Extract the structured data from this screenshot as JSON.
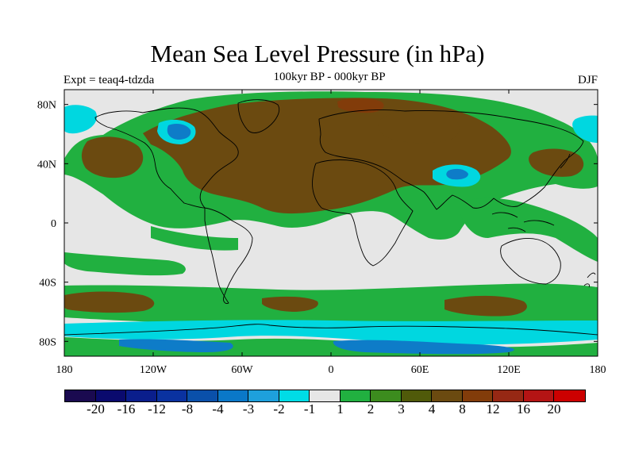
{
  "header": {
    "title": "Mean Sea Level Pressure (in hPa)",
    "subtitle": "100kyr BP - 000kyr BP",
    "experiment": "Expt = teaq4-tdzda",
    "season": "DJF"
  },
  "map": {
    "lat_axis": [
      {
        "label": "80N",
        "lat": 80
      },
      {
        "label": "40N",
        "lat": 40
      },
      {
        "label": "0",
        "lat": 0
      },
      {
        "label": "40S",
        "lat": -40
      },
      {
        "label": "80S",
        "lat": -80
      }
    ],
    "lon_axis": [
      {
        "label": "180",
        "lon": -180
      },
      {
        "label": "120W",
        "lon": -120
      },
      {
        "label": "60W",
        "lon": -60
      },
      {
        "label": "0",
        "lon": 0
      },
      {
        "label": "60E",
        "lon": 60
      },
      {
        "label": "120E",
        "lon": 120
      },
      {
        "label": "180",
        "lon": 180
      }
    ],
    "colors": {
      "background": "#e6e6e6",
      "green": "#21b040",
      "brown": "#6b4a10",
      "cyan": "#00d7e0",
      "blue_light": "#1ea8dc",
      "blue": "#0e7cc8",
      "coast": "#000000"
    }
  },
  "colorbar": {
    "colors": [
      "#1a0a50",
      "#0a0a6e",
      "#0a1e8c",
      "#0a32a0",
      "#0a50aa",
      "#0a78c8",
      "#1ea0dc",
      "#00dce6",
      "#e6e6e6",
      "#21b040",
      "#3c8c1e",
      "#505a0a",
      "#6b4a10",
      "#823c0a",
      "#962814",
      "#b41414",
      "#cc0000"
    ],
    "labels": [
      {
        "text": "-20",
        "boundary": 1
      },
      {
        "text": "-16",
        "boundary": 2
      },
      {
        "text": "-12",
        "boundary": 3
      },
      {
        "text": "-8",
        "boundary": 4
      },
      {
        "text": "-4",
        "boundary": 5
      },
      {
        "text": "-3",
        "boundary": 6
      },
      {
        "text": "-2",
        "boundary": 7
      },
      {
        "text": "-1",
        "boundary": 8
      },
      {
        "text": "1",
        "boundary": 9
      },
      {
        "text": "2",
        "boundary": 10
      },
      {
        "text": "3",
        "boundary": 11
      },
      {
        "text": "4",
        "boundary": 12
      },
      {
        "text": "8",
        "boundary": 13
      },
      {
        "text": "12",
        "boundary": 14
      },
      {
        "text": "16",
        "boundary": 15
      },
      {
        "text": "20",
        "boundary": 16
      }
    ]
  }
}
